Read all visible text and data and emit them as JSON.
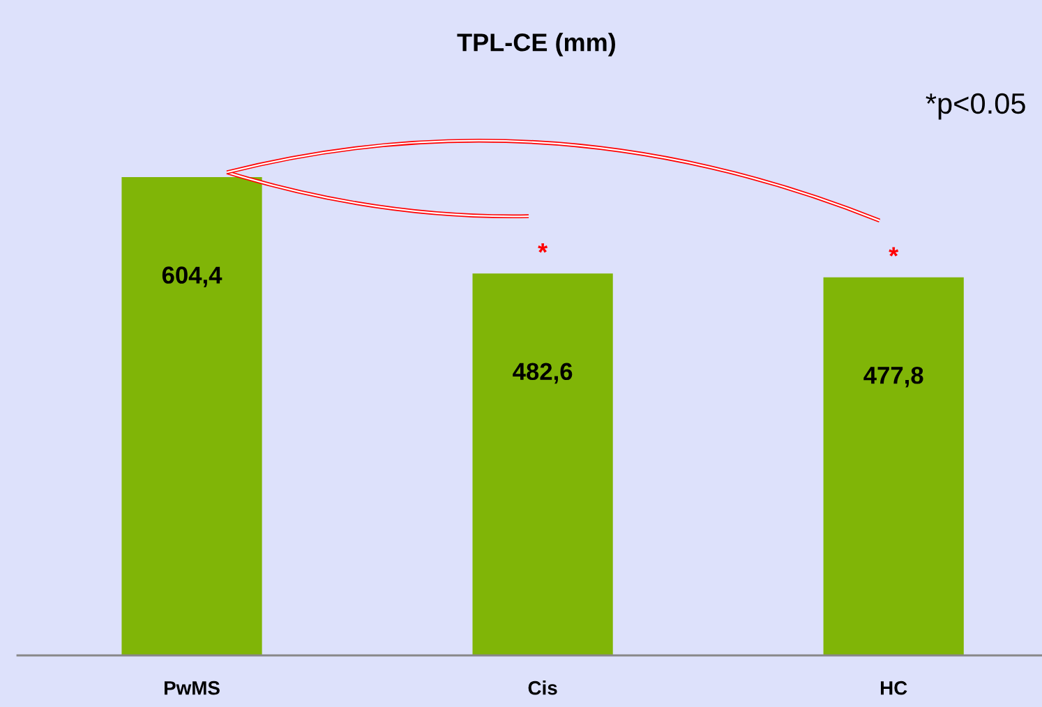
{
  "chart_data": {
    "type": "bar",
    "title": "TPL-CE (mm)",
    "categories": [
      "PwMS",
      "Cis",
      "HC"
    ],
    "values": [
      604.4,
      482.6,
      477.8
    ],
    "value_labels": [
      "604,4",
      "482,6",
      "477,8"
    ],
    "color": "#80b507",
    "grid": false,
    "legend": false,
    "annotations": [
      {
        "text": "*",
        "x": "Cis",
        "y": 482.6
      },
      {
        "text": "*",
        "x": "HC",
        "y": 477.8
      },
      "*p<0.05"
    ]
  }
}
